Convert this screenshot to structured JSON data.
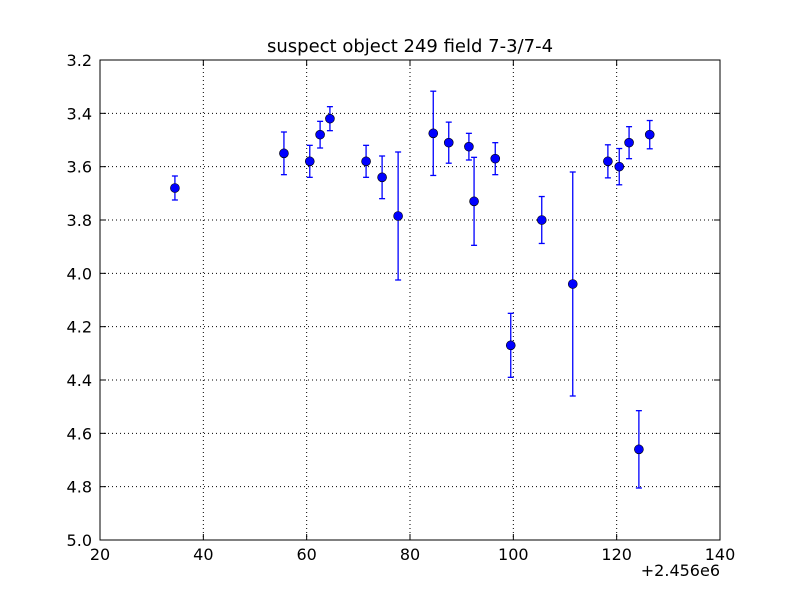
{
  "chart_data": {
    "type": "errorbar",
    "title": "suspect object 249 field 7-3/7-4",
    "x_offset_label": "+2.456e6",
    "x": [
      34.5,
      55.6,
      60.6,
      62.6,
      64.5,
      71.5,
      74.6,
      77.7,
      84.5,
      87.5,
      91.4,
      92.4,
      96.5,
      99.5,
      105.5,
      111.5,
      118.3,
      120.5,
      122.4,
      124.3,
      126.4
    ],
    "values": [
      3.68,
      3.55,
      3.58,
      3.48,
      3.42,
      3.58,
      3.64,
      3.785,
      3.475,
      3.51,
      3.525,
      3.73,
      3.57,
      4.27,
      3.8,
      4.04,
      3.58,
      3.6,
      3.51,
      4.66,
      3.48
    ],
    "errors": [
      0.045,
      0.08,
      0.06,
      0.05,
      0.045,
      0.06,
      0.08,
      0.24,
      0.158,
      0.077,
      0.05,
      0.165,
      0.06,
      0.12,
      0.088,
      0.42,
      0.062,
      0.068,
      0.06,
      0.145,
      0.053
    ],
    "color": "#0000ff",
    "xlim": [
      20,
      140
    ],
    "xticks": [
      20,
      40,
      60,
      80,
      100,
      120,
      140
    ],
    "ylim": [
      3.2,
      5.0
    ],
    "yticks": [
      3.2,
      3.4,
      3.6,
      3.8,
      {
        "value": 4,
        "label": "4.0"
      },
      4.2,
      4.4,
      4.6,
      4.8,
      {
        "value": 5,
        "label": "5.0"
      }
    ],
    "y_inverted": true,
    "grid": true
  }
}
